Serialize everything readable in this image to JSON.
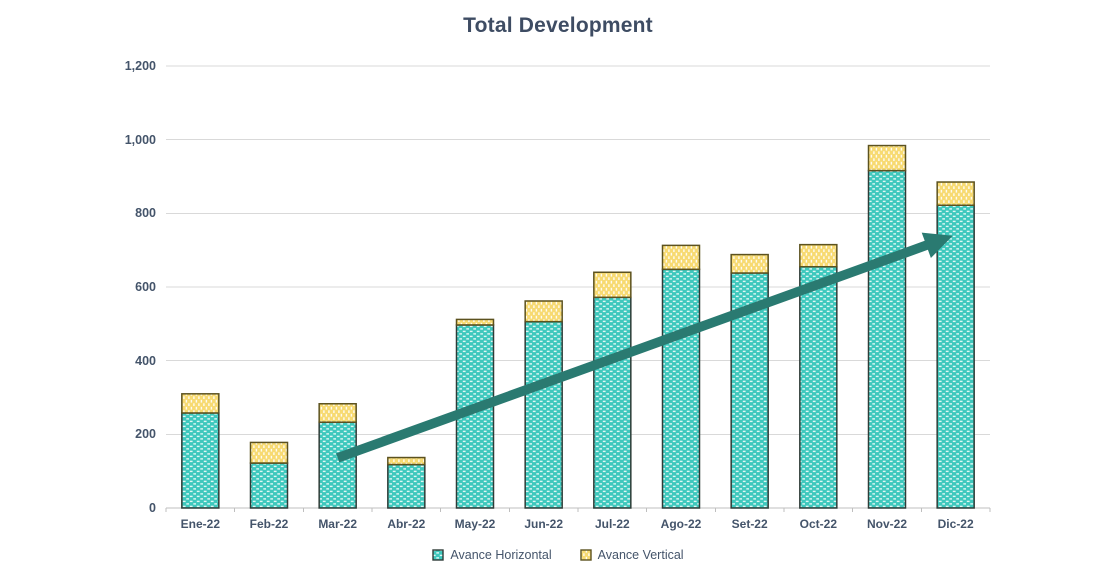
{
  "title": "Total Development",
  "colors": {
    "title_text": "#3e4c63",
    "axis_text": "#44546a",
    "gridline": "#d9d9d9",
    "axis_line": "#bfbfbf",
    "horizontal_fill": "#3ec8bd",
    "horizontal_border": "#2f3c38",
    "vertical_fill": "#f7da72",
    "vertical_border": "#5c521f",
    "pattern_dot": "#ffffff",
    "trend_arrow": "#2a7a71"
  },
  "chart_data": {
    "type": "bar",
    "stacked": true,
    "title": "Total Development",
    "categories": [
      "Ene-22",
      "Feb-22",
      "Mar-22",
      "Abr-22",
      "May-22",
      "Jun-22",
      "Jul-22",
      "Ago-22",
      "Set-22",
      "Oct-22",
      "Nov-22",
      "Dic-22"
    ],
    "series": [
      {
        "name": "Avance Horizontal",
        "values": [
          258,
          122,
          233,
          118,
          497,
          506,
          572,
          648,
          638,
          655,
          916,
          822
        ]
      },
      {
        "name": "Avance Vertical",
        "values": [
          52,
          56,
          50,
          19,
          15,
          56,
          68,
          65,
          50,
          60,
          68,
          63
        ]
      }
    ],
    "totals": [
      310,
      178,
      283,
      137,
      512,
      562,
      640,
      713,
      688,
      715,
      984,
      885
    ],
    "ylim": [
      0,
      1200
    ],
    "ytick_interval": 200,
    "ytick_labels": [
      "0",
      "200",
      "400",
      "600",
      "800",
      "1,000",
      "1,200"
    ],
    "grid": true,
    "legend_position": "bottom",
    "annotations": [
      {
        "type": "trend-arrow",
        "from": {
          "category": "Mar-22",
          "value": 136
        },
        "to": {
          "category": "Dic-22",
          "value": 739
        }
      }
    ]
  },
  "legend": {
    "items": [
      {
        "label": "Avance Horizontal"
      },
      {
        "label": "Avance Vertical"
      }
    ]
  }
}
